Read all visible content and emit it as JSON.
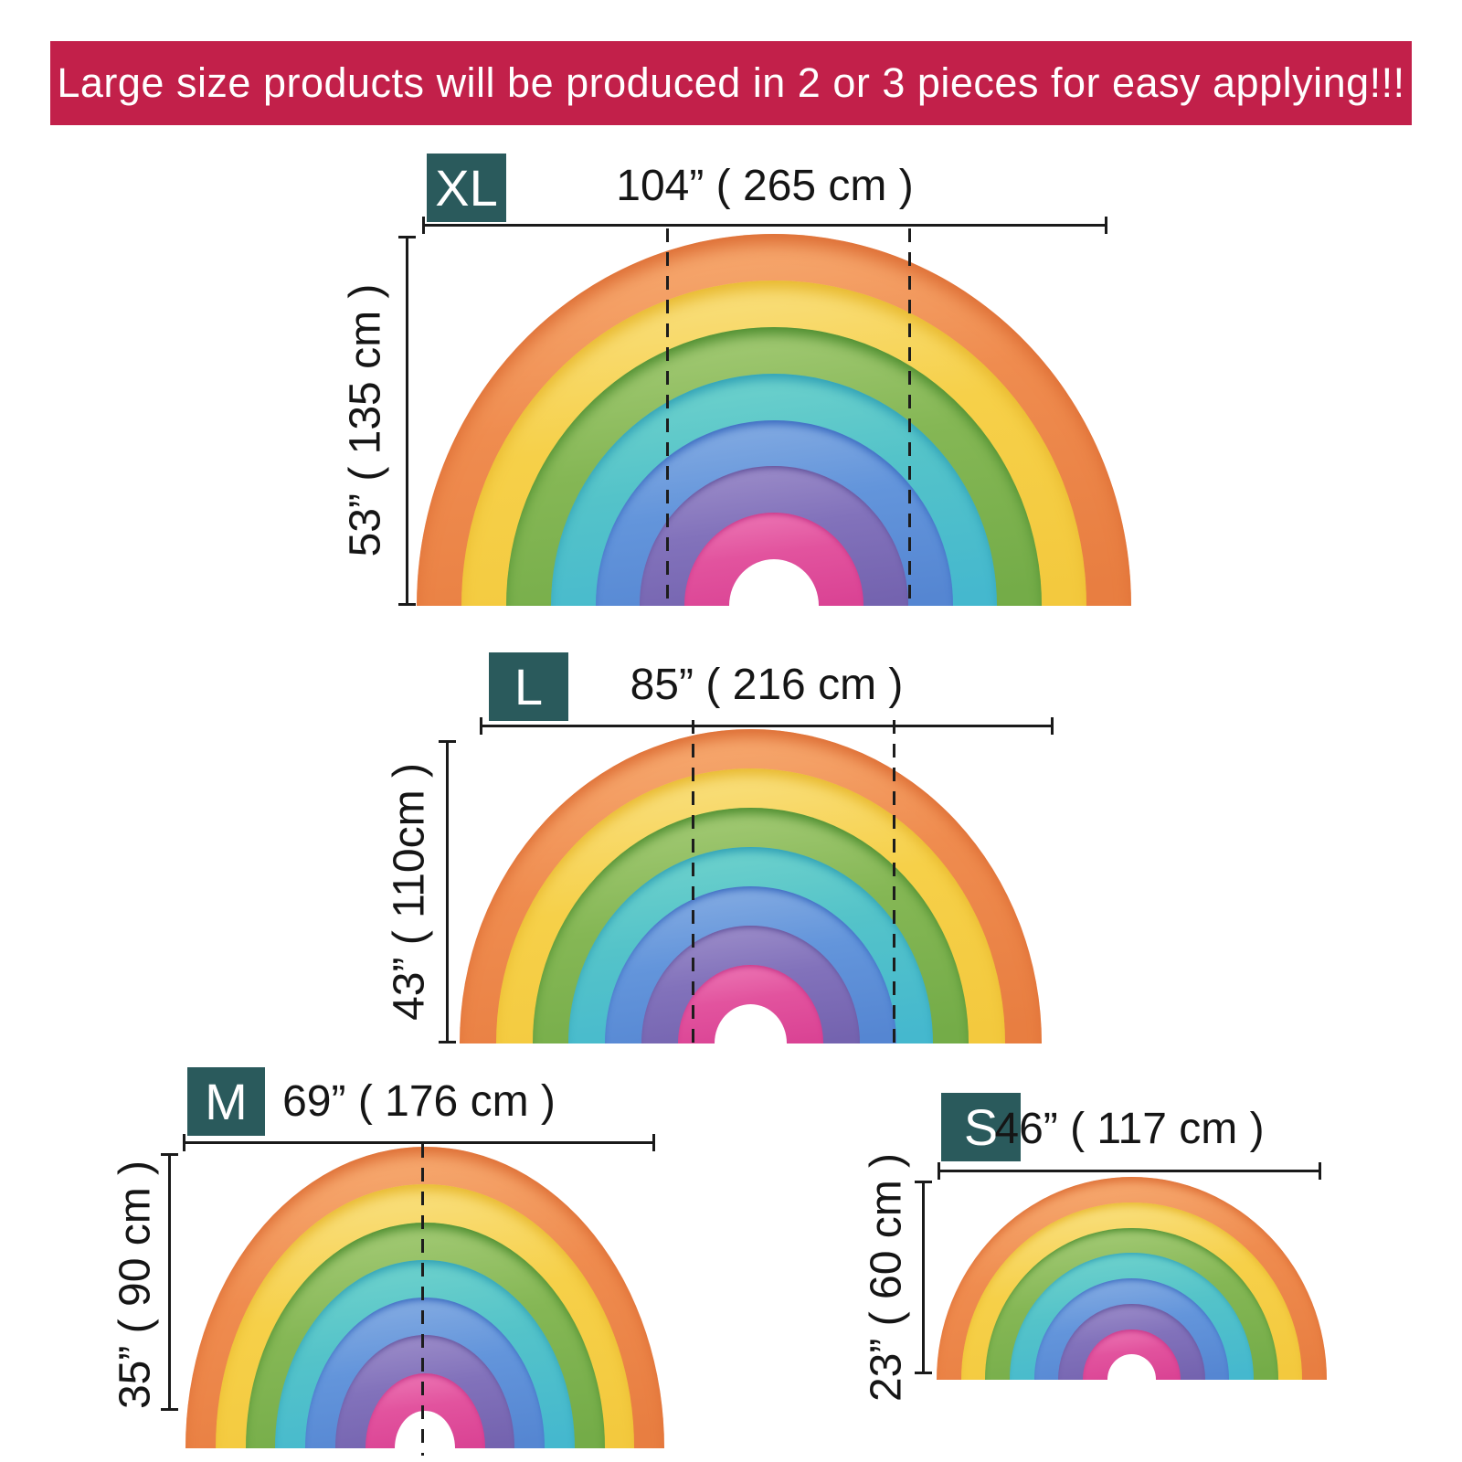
{
  "banner": {
    "text": "Large size products will be produced in 2 or 3 pieces for easy applying!!!",
    "bg": "#c2204a",
    "fg": "#ffffff"
  },
  "colors": {
    "badge_bg": "#2a5a5c",
    "badge_fg": "#ffffff",
    "dimension_line": "#1a1a1a",
    "cut_line": "#1d1d1d",
    "text": "#151515",
    "hole": "#ffffff"
  },
  "rainbow_colors": [
    {
      "name": "orange",
      "light": "#f7ac73",
      "fill": "#ef8c4f",
      "deep": "#e87e41",
      "edge": "#dd6e35"
    },
    {
      "name": "yellow",
      "light": "#f9e083",
      "fill": "#f6d049",
      "deep": "#f3c93e",
      "edge": "#e8b92f"
    },
    {
      "name": "green",
      "light": "#a5cb77",
      "fill": "#85b755",
      "deep": "#74ac48",
      "edge": "#4c8c2e"
    },
    {
      "name": "teal",
      "light": "#6fd2cc",
      "fill": "#54c3c9",
      "deep": "#45b8ce",
      "edge": "#2e9fb5"
    },
    {
      "name": "blue",
      "light": "#85ace2",
      "fill": "#6395db",
      "deep": "#5586d2",
      "edge": "#3667be"
    },
    {
      "name": "purple",
      "light": "#9c8dc9",
      "fill": "#8272bb",
      "deep": "#7463af",
      "edge": "#5d4c96"
    },
    {
      "name": "pink",
      "light": "#ec76b4",
      "fill": "#e2539e",
      "deep": "#da4394",
      "edge": "#c22e83"
    }
  ],
  "sizes": [
    {
      "id": "xl",
      "label": "XL",
      "width_label": "104” ( 265 cm )",
      "height_label": "53” ( 135 cm )",
      "pieces": 3
    },
    {
      "id": "l",
      "label": "L",
      "width_label": "85” ( 216 cm )",
      "height_label": "43” ( 110cm )",
      "pieces": 3
    },
    {
      "id": "m",
      "label": "M",
      "width_label": "69” ( 176 cm )",
      "height_label": "35” ( 90 cm )",
      "pieces": 2
    },
    {
      "id": "s",
      "label": "S",
      "width_label": "46” ( 117 cm )",
      "height_label": "23” ( 60 cm )",
      "pieces": 1
    }
  ]
}
